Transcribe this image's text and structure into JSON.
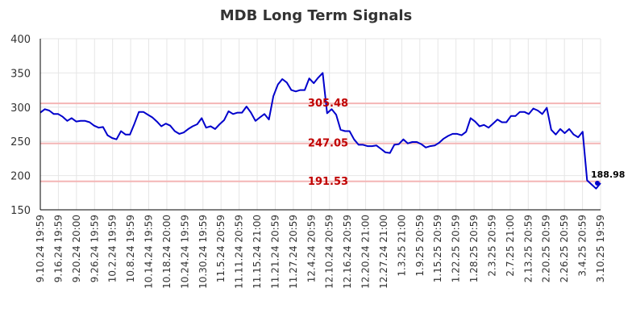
{
  "chart_data": {
    "type": "line",
    "title": "MDB Long Term Signals",
    "xlabel": "",
    "ylabel": "",
    "ylim": [
      150,
      400
    ],
    "yticks": [
      150,
      200,
      250,
      300,
      350,
      400
    ],
    "grid": true,
    "x_tick_labels": [
      "9.10.24 19:59",
      "9.16.24 19:59",
      "9.20.24 20:00",
      "9.26.24 19:59",
      "10.2.24 19:59",
      "10.8.24 19:59",
      "10.14.24 19:59",
      "10.18.24 20:00",
      "10.24.24 19:59",
      "10.30.24 19:59",
      "11.5.24 20:59",
      "11.11.24 20:59",
      "11.15.24 21:00",
      "11.21.24 20:59",
      "11.27.24 20:59",
      "12.4.24 20:59",
      "12.10.24 20:59",
      "12.16.24 20:59",
      "12.20.24 21:00",
      "12.27.24 21:00",
      "1.3.25 21:00",
      "1.9.25 20:59",
      "1.15.25 20:59",
      "1.22.25 20:59",
      "1.28.25 20:59",
      "2.3.25 20:59",
      "2.7.25 21:00",
      "2.13.25 20:59",
      "2.20.25 20:59",
      "2.26.25 20:59",
      "3.4.25 20:59",
      "3.10.25 19:59"
    ],
    "hlines": [
      {
        "value": 305.48,
        "label": "305.48",
        "color": "#c00000"
      },
      {
        "value": 247.05,
        "label": "247.05",
        "color": "#c00000"
      },
      {
        "value": 191.53,
        "label": "191.53",
        "color": "#c00000"
      }
    ],
    "last_value": {
      "value": 188.98,
      "label": "188.98"
    },
    "series": [
      {
        "color": "#0000cc",
        "values": [
          292,
          297,
          295,
          290,
          290,
          286,
          280,
          284,
          279,
          280,
          280,
          278,
          273,
          270,
          271,
          259,
          255,
          253,
          265,
          260,
          260,
          276,
          293,
          293,
          289,
          285,
          279,
          272,
          276,
          273,
          265,
          261,
          263,
          268,
          272,
          275,
          284,
          270,
          272,
          268,
          275,
          281,
          294,
          290,
          292,
          292,
          301,
          292,
          280,
          285,
          290,
          282,
          316,
          333,
          341,
          336,
          325,
          323,
          325,
          325,
          342,
          335,
          343,
          350,
          291,
          297,
          289,
          267,
          265,
          265,
          253,
          245,
          245,
          243,
          243,
          244,
          239,
          234,
          233,
          245,
          246,
          253,
          247,
          249,
          249,
          246,
          241,
          243,
          244,
          248,
          254,
          258,
          261,
          261,
          259,
          264,
          284,
          279,
          272,
          274,
          270,
          276,
          282,
          278,
          278,
          287,
          287,
          293,
          293,
          290,
          298,
          295,
          290,
          299,
          267,
          260,
          268,
          262,
          268,
          260,
          256,
          264,
          193,
          187,
          181,
          189
        ]
      }
    ]
  }
}
